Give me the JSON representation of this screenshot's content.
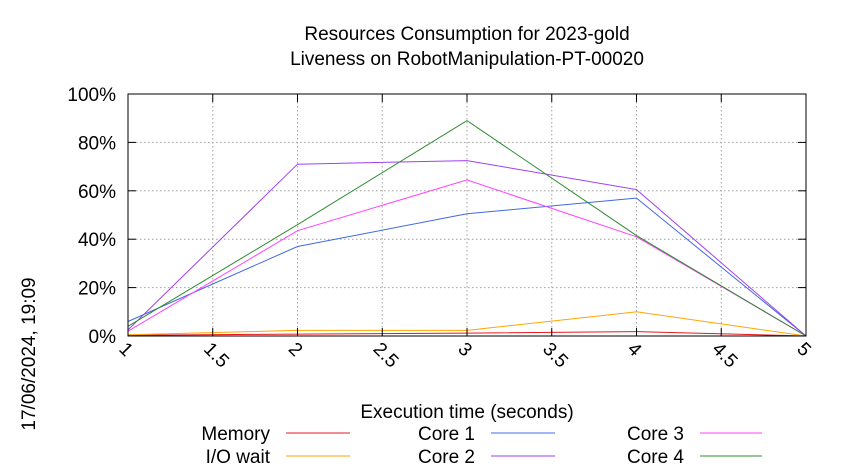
{
  "chart_data": {
    "type": "line",
    "title": [
      "Resources Consumption for 2023-gold",
      "Liveness on RobotManipulation-PT-00020"
    ],
    "xlabel": "Execution time (seconds)",
    "ylabel": "",
    "side_label": "17/06/2024, 19:09",
    "xlim": [
      1,
      5
    ],
    "ylim": [
      0,
      100
    ],
    "x_ticks": [
      "1",
      "1.5",
      "2",
      "2.5",
      "3",
      "3.5",
      "4",
      "4.5",
      "5"
    ],
    "y_ticks": [
      "0%",
      "20%",
      "40%",
      "60%",
      "80%",
      "100%"
    ],
    "grid": true,
    "legend_position": "bottom",
    "series": [
      {
        "name": "Memory",
        "color": "#e41a1c",
        "x": [
          1,
          2,
          3,
          4,
          5
        ],
        "y": [
          0.3,
          0.8,
          1.2,
          1.8,
          0
        ]
      },
      {
        "name": "I/O wait",
        "color": "#ffa500",
        "x": [
          1,
          2,
          3,
          4,
          5
        ],
        "y": [
          0.5,
          2.3,
          2.3,
          10,
          0
        ]
      },
      {
        "name": "Core 1",
        "color": "#4169e1",
        "x": [
          1,
          2,
          3,
          4,
          5
        ],
        "y": [
          6,
          37,
          50.5,
          57,
          0
        ]
      },
      {
        "name": "Core 2",
        "color": "#a040f0",
        "x": [
          1,
          2,
          3,
          4,
          5
        ],
        "y": [
          2.5,
          71,
          72.5,
          60.5,
          0
        ]
      },
      {
        "name": "Core 3",
        "color": "#ff40ff",
        "x": [
          1,
          2,
          3,
          4,
          5
        ],
        "y": [
          2,
          43.5,
          64.5,
          41,
          0
        ]
      },
      {
        "name": "Core 4",
        "color": "#2e8b2e",
        "x": [
          1,
          2,
          3,
          4,
          5
        ],
        "y": [
          4,
          46,
          89,
          41.5,
          0
        ]
      }
    ]
  }
}
